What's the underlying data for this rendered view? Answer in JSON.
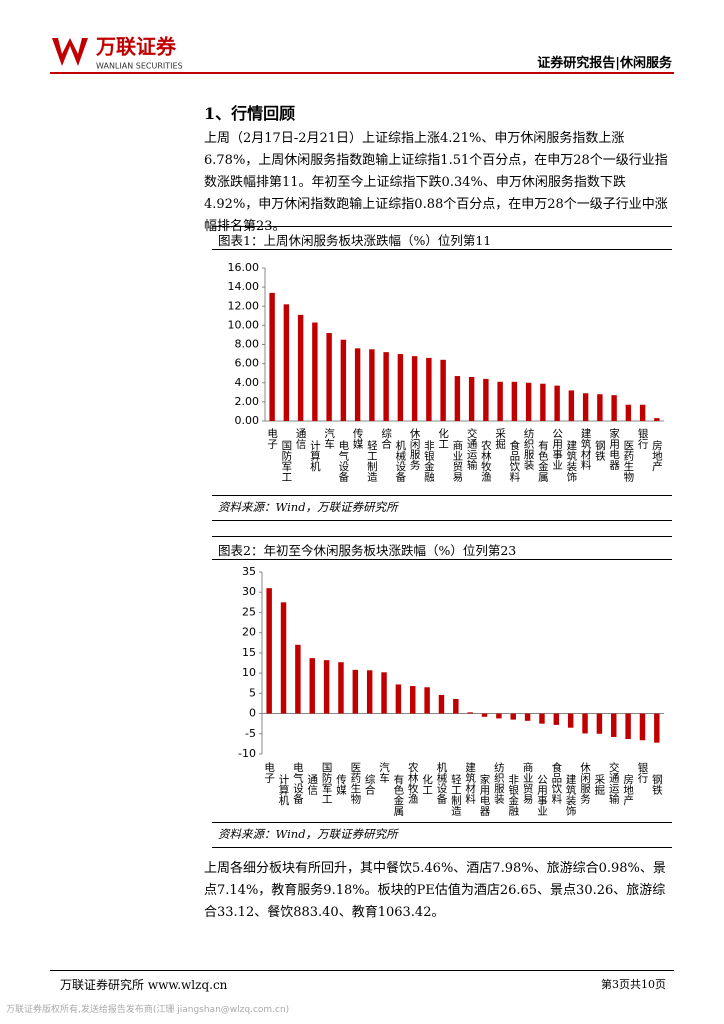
{
  "header": {
    "logo_name": "万联证券",
    "logo_en": "WANLIAN SECURITIES",
    "right": "证券研究报告|休闲服务"
  },
  "section_title": "1、行情回顾",
  "paragraphs": [
    "上周（2月17日-2月21日）上证综指上涨4.21%、申万休闲服务指数上涨6.78%，上周休闲服务指数跑输上证综指1.51个百分点，在申万28个一级行业指数涨跌幅排第11。年初至今上证综指下跌0.34%、申万休闲服务指数下跌4.92%，申万休闲指数跑输上证综指0.88个百分点，在申万28个一级子行业中涨幅排名第23。",
    "上周各细分板块有所回升，其中餐饮5.46%、酒店7.98%、旅游综合0.98%、景点7.14%，教育服务9.18%。板块的PE估值为酒店26.65、景点30.26、旅游综合33.12、餐饮883.40、教育1063.42。"
  ],
  "chart_data": [
    {
      "type": "bar",
      "title": "图表1：上周休闲服务板块涨跌幅（%）位列第11",
      "source": "资料来源：Wind，万联证券研究所",
      "categories": [
        "电子",
        "国防军工",
        "通信",
        "计算机",
        "汽车",
        "电气设备",
        "传媒",
        "轻工制造",
        "综合",
        "机械设备",
        "休闲服务",
        "非银金融",
        "化工",
        "商业贸易",
        "交通运输",
        "农林牧渔",
        "采掘",
        "食品饮料",
        "纺织服装",
        "有色金属",
        "公用事业",
        "建筑装饰",
        "建筑材料",
        "钢铁",
        "家用电器",
        "医药生物",
        "银行",
        "房地产"
      ],
      "values": [
        13.4,
        12.2,
        11.1,
        10.3,
        9.2,
        8.5,
        7.6,
        7.5,
        7.2,
        7.0,
        6.78,
        6.6,
        6.4,
        4.7,
        4.6,
        4.4,
        4.1,
        4.1,
        4.0,
        3.9,
        3.7,
        3.2,
        2.9,
        2.8,
        2.7,
        1.7,
        1.7,
        0.3
      ],
      "color": "#c00000",
      "ylim": [
        0,
        16
      ],
      "yticks": [
        {
          "value": 0,
          "label": "0.00"
        },
        {
          "value": 2,
          "label": "2.00"
        },
        {
          "value": 4,
          "label": "4.00"
        },
        {
          "value": 6,
          "label": "6.00"
        },
        {
          "value": 8,
          "label": "8.00"
        },
        {
          "value": 10,
          "label": "10.00"
        },
        {
          "value": 12,
          "label": "12.00"
        },
        {
          "value": 14,
          "label": "14.00"
        },
        {
          "value": 16,
          "label": "16.00"
        }
      ]
    },
    {
      "type": "bar",
      "title": "图表2：年初至今休闲服务板块涨跌幅（%）位列第23",
      "source": "资料来源：Wind，万联证券研究所",
      "categories": [
        "电子",
        "计算机",
        "电气设备",
        "通信",
        "国防军工",
        "传媒",
        "医药生物",
        "综合",
        "汽车",
        "有色金属",
        "农林牧渔",
        "化工",
        "机械设备",
        "轻工制造",
        "建筑材料",
        "家用电器",
        "纺织服装",
        "非银金融",
        "商业贸易",
        "公用事业",
        "食品饮料",
        "建筑装饰",
        "休闲服务",
        "采掘",
        "交通运输",
        "房地产",
        "银行",
        "钢铁"
      ],
      "values": [
        31,
        27.5,
        17,
        13.7,
        13.2,
        12.7,
        10.8,
        10.7,
        10.2,
        7.2,
        6.8,
        6.5,
        4.6,
        3.6,
        0.3,
        -0.8,
        -1.2,
        -1.5,
        -1.8,
        -2.5,
        -2.8,
        -3.5,
        -4.92,
        -5.0,
        -5.8,
        -6.3,
        -6.6,
        -7.2
      ],
      "color": "#c00000",
      "ylim": [
        -10,
        35
      ],
      "yticks": [
        -10,
        -5,
        0,
        5,
        10,
        15,
        20,
        25,
        30,
        35
      ]
    }
  ],
  "footer": {
    "left": "万联证券研究所 www.wlzq.cn",
    "right": "第3页共10页",
    "notice": "万联证券版权所有,发送给报告发布商(江珊 jiangshan@wlzq.com.cn)"
  }
}
